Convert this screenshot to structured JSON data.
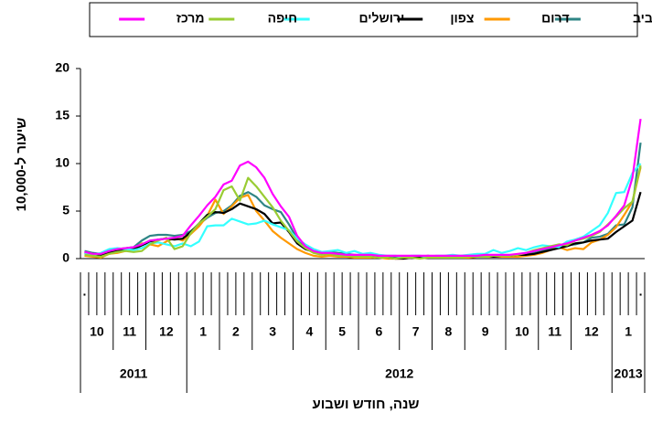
{
  "chart_data": {
    "type": "line",
    "ylabel": "שיעור ל-10,000",
    "xlabel": "שנה, חודש ושבוע",
    "ylim": [
      0,
      20
    ],
    "yticks": [
      0,
      5,
      10,
      15,
      20
    ],
    "categories": [
      ".",
      null,
      null,
      null,
      null,
      null,
      null,
      null,
      null,
      null,
      null,
      null,
      null,
      null,
      null,
      null,
      null,
      null,
      null,
      null,
      null,
      null,
      null,
      null,
      null,
      null,
      null,
      null,
      null,
      null,
      null,
      null,
      null,
      null,
      null,
      null,
      null,
      null,
      null,
      null,
      null,
      null,
      null,
      null,
      null,
      null,
      null,
      null,
      null,
      null,
      null,
      null,
      null,
      null,
      null,
      null,
      null,
      null,
      null,
      null,
      null,
      null,
      null,
      null,
      null,
      null,
      null,
      null,
      "."
    ],
    "months": [
      {
        "label": "10",
        "weeks": 4
      },
      {
        "label": "11",
        "weeks": 4
      },
      {
        "label": "12",
        "weeks": 5
      },
      {
        "label": "1",
        "weeks": 4
      },
      {
        "label": "2",
        "weeks": 4
      },
      {
        "label": "3",
        "weeks": 5
      },
      {
        "label": "4",
        "weeks": 4
      },
      {
        "label": "5",
        "weeks": 4
      },
      {
        "label": "6",
        "weeks": 5
      },
      {
        "label": "7",
        "weeks": 4
      },
      {
        "label": "8",
        "weeks": 4
      },
      {
        "label": "9",
        "weeks": 5
      },
      {
        "label": "10",
        "weeks": 4
      },
      {
        "label": "11",
        "weeks": 4
      },
      {
        "label": "12",
        "weeks": 5
      },
      {
        "label": "1",
        "weeks": 4
      }
    ],
    "years": [
      {
        "label": "2011",
        "months": 3
      },
      {
        "label": "2012",
        "months": 12
      },
      {
        "label": "2013",
        "months": 1
      }
    ],
    "series": [
      {
        "name": "תל אביב",
        "color": "#2e8585",
        "values": [
          0.8,
          0.6,
          0.5,
          0.9,
          1.0,
          1.1,
          1.2,
          1.9,
          2.4,
          2.5,
          2.5,
          2.4,
          2.5,
          2.9,
          3.6,
          4.3,
          4.8,
          5.0,
          5.6,
          6.6,
          7.0,
          6.5,
          5.6,
          5.2,
          4.9,
          3.6,
          2.1,
          1.1,
          0.8,
          0.6,
          0.7,
          0.6,
          0.5,
          0.4,
          0.3,
          0.3,
          0.3,
          0.2,
          0.1,
          0.1,
          0.2,
          0.2,
          0.3,
          0.2,
          0.2,
          0.2,
          0.2,
          0.3,
          0.3,
          0.3,
          0.3,
          0.4,
          0.3,
          0.4,
          0.5,
          0.6,
          0.8,
          1.1,
          1.3,
          1.4,
          1.5,
          1.7,
          2.2,
          2.3,
          2.6,
          3.5,
          3.6,
          5.4,
          12.2
        ]
      },
      {
        "name": "דרום",
        "color": "#ff9900",
        "values": [
          0.3,
          0.2,
          0.1,
          0.5,
          0.6,
          0.8,
          1.0,
          1.6,
          1.5,
          1.3,
          1.8,
          2.2,
          1.9,
          2.6,
          3.4,
          4.5,
          6.2,
          4.7,
          5.5,
          6.4,
          6.7,
          5.0,
          4.0,
          2.9,
          2.2,
          1.6,
          1.0,
          0.6,
          0.3,
          0.2,
          0.3,
          0.2,
          0.2,
          0.1,
          0.1,
          0.1,
          0.1,
          0.0,
          0.0,
          0.0,
          0.1,
          0.1,
          0.1,
          0.1,
          0.1,
          0.1,
          0.1,
          0.1,
          0.2,
          0.2,
          0.2,
          0.2,
          0.2,
          0.2,
          0.3,
          0.4,
          0.6,
          0.9,
          1.2,
          0.9,
          1.1,
          1.0,
          1.7,
          2.0,
          2.5,
          3.3,
          4.6,
          6.0,
          9.6
        ]
      },
      {
        "name": "צפון",
        "color": "#000000",
        "values": [
          0.6,
          0.5,
          0.4,
          0.7,
          0.8,
          0.9,
          1.0,
          1.4,
          1.8,
          2.0,
          2.1,
          2.0,
          2.1,
          2.8,
          3.7,
          4.6,
          4.9,
          4.8,
          5.2,
          5.8,
          5.5,
          5.2,
          4.7,
          3.7,
          3.8,
          2.8,
          1.6,
          1.0,
          0.7,
          0.5,
          0.6,
          0.4,
          0.3,
          0.3,
          0.2,
          0.2,
          0.1,
          0.1,
          0.0,
          0.0,
          0.1,
          0.1,
          0.2,
          0.2,
          0.1,
          0.1,
          0.2,
          0.2,
          0.2,
          0.3,
          0.2,
          0.3,
          0.3,
          0.4,
          0.4,
          0.5,
          0.7,
          0.9,
          1.1,
          1.3,
          1.6,
          1.7,
          1.9,
          2.0,
          2.1,
          2.8,
          3.4,
          4.0,
          7.0
        ]
      },
      {
        "name": "ירושלים",
        "color": "#33ffff",
        "values": [
          0.5,
          0.4,
          0.6,
          1.0,
          1.1,
          1.0,
          0.9,
          1.1,
          1.6,
          1.7,
          1.5,
          1.3,
          1.6,
          1.3,
          1.8,
          3.4,
          3.5,
          3.5,
          4.2,
          3.9,
          3.6,
          3.7,
          4.0,
          3.6,
          3.3,
          3.0,
          2.1,
          1.5,
          1.0,
          0.7,
          0.8,
          0.9,
          0.6,
          0.8,
          0.5,
          0.6,
          0.4,
          0.3,
          0.3,
          0.2,
          0.3,
          0.3,
          0.2,
          0.3,
          0.3,
          0.4,
          0.3,
          0.4,
          0.5,
          0.5,
          0.9,
          0.6,
          0.8,
          1.1,
          0.9,
          1.2,
          1.4,
          1.3,
          1.2,
          1.8,
          2.0,
          2.3,
          2.9,
          3.5,
          4.8,
          6.9,
          7.0,
          9.0,
          10.0
        ]
      },
      {
        "name": "חיפה",
        "color": "#99cc33",
        "values": [
          0.4,
          0.3,
          0.2,
          0.5,
          0.7,
          0.8,
          0.7,
          0.8,
          1.5,
          1.9,
          2.2,
          1.0,
          1.3,
          2.7,
          3.7,
          4.4,
          5.2,
          7.2,
          7.6,
          6.1,
          8.5,
          7.6,
          6.5,
          5.4,
          4.0,
          2.9,
          1.8,
          1.1,
          0.6,
          0.4,
          0.5,
          0.3,
          0.3,
          0.2,
          0.2,
          0.2,
          0.1,
          0.1,
          0.0,
          0.1,
          0.1,
          0.0,
          0.1,
          0.1,
          0.1,
          0.1,
          0.1,
          0.2,
          0.2,
          0.2,
          0.3,
          0.3,
          0.3,
          0.4,
          0.6,
          0.9,
          1.1,
          1.3,
          1.5,
          1.4,
          1.9,
          2.1,
          2.4,
          2.8,
          3.6,
          4.4,
          5.3,
          6.0,
          9.8
        ]
      },
      {
        "name": "מרכז",
        "color": "#ff00ff",
        "values": [
          0.7,
          0.5,
          0.5,
          0.8,
          1.0,
          1.1,
          1.2,
          1.5,
          1.9,
          2.0,
          2.1,
          2.2,
          2.4,
          3.5,
          4.5,
          5.6,
          6.5,
          7.8,
          8.2,
          9.8,
          10.2,
          9.6,
          8.5,
          6.8,
          5.5,
          4.4,
          2.4,
          1.3,
          0.8,
          0.6,
          0.6,
          0.5,
          0.4,
          0.4,
          0.4,
          0.4,
          0.3,
          0.3,
          0.3,
          0.3,
          0.3,
          0.3,
          0.3,
          0.3,
          0.3,
          0.3,
          0.3,
          0.3,
          0.3,
          0.4,
          0.4,
          0.4,
          0.4,
          0.5,
          0.6,
          0.8,
          1.0,
          1.2,
          1.4,
          1.6,
          1.9,
          2.2,
          2.5,
          2.9,
          3.5,
          4.5,
          5.6,
          8.5,
          14.7
        ]
      }
    ]
  }
}
